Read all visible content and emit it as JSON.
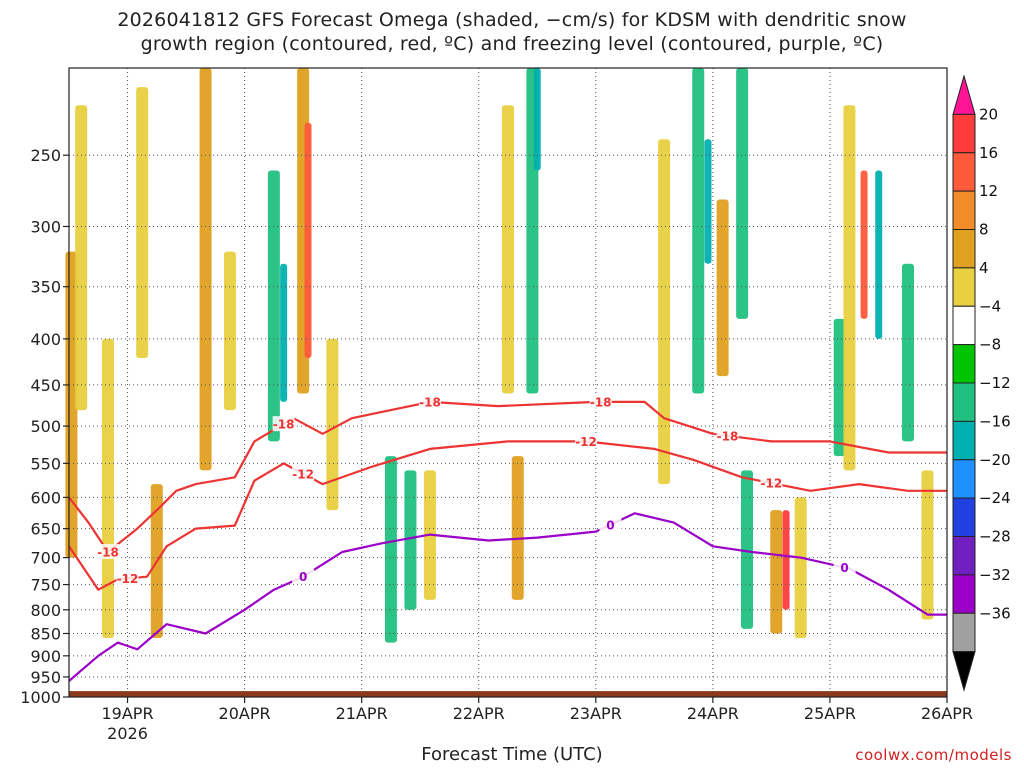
{
  "title": "2026041812 GFS Forecast Omega (shaded, −cm/s) for KDSM with dendritic snow\ngrowth region (contoured, red, ºC) and freezing level (contoured, purple, ºC)",
  "credit": "coolwx.com/models",
  "chart_data": {
    "type": "heatmap",
    "xlabel": "Forecast Time (UTC)",
    "ylabel": "",
    "x_ticks": [
      "19APR",
      "20APR",
      "21APR",
      "22APR",
      "23APR",
      "24APR",
      "25APR",
      "26APR"
    ],
    "x_sublabel": "2026",
    "x_range_hours": [
      0,
      180
    ],
    "y_ticks": [
      250,
      300,
      350,
      400,
      450,
      500,
      550,
      600,
      650,
      700,
      750,
      800,
      850,
      900,
      950,
      1000
    ],
    "y_range_hPa": [
      200,
      1000
    ],
    "grid": true,
    "colorbar": {
      "labels": [
        "20",
        "16",
        "12",
        "8",
        "4",
        "−4",
        "−8",
        "−12",
        "−16",
        "−20",
        "−24",
        "−28",
        "−32",
        "−36"
      ],
      "colors": [
        "#ff1493",
        "#ff3b3b",
        "#ff5a3a",
        "#f28c28",
        "#e0a020",
        "#e8d040",
        "#ffffff",
        "#00c400",
        "#20c080",
        "#00b0b0",
        "#1e90ff",
        "#2040e0",
        "#7020c0",
        "#9b00c8",
        "#a0a0a0",
        "#000000"
      ]
    },
    "omega_cells": [
      {
        "t": 0.5,
        "p0": 320,
        "p1": 700,
        "v": 8
      },
      {
        "t": 2.5,
        "p0": 220,
        "p1": 480,
        "v": 4
      },
      {
        "t": 8,
        "p0": 400,
        "p1": 860,
        "v": 6
      },
      {
        "t": 15,
        "p0": 210,
        "p1": 420,
        "v": 4
      },
      {
        "t": 18,
        "p0": 580,
        "p1": 860,
        "v": 8
      },
      {
        "t": 28,
        "p0": 200,
        "p1": 560,
        "v": 8
      },
      {
        "t": 33,
        "p0": 320,
        "p1": 480,
        "v": 4
      },
      {
        "t": 42,
        "p0": 260,
        "p1": 520,
        "v": -8
      },
      {
        "t": 44,
        "p0": 330,
        "p1": 470,
        "v": -12
      },
      {
        "t": 48,
        "p0": 200,
        "p1": 460,
        "v": 8
      },
      {
        "t": 49,
        "p0": 230,
        "p1": 420,
        "v": 12
      },
      {
        "t": 54,
        "p0": 400,
        "p1": 620,
        "v": 4
      },
      {
        "t": 66,
        "p0": 540,
        "p1": 870,
        "v": -8
      },
      {
        "t": 70,
        "p0": 560,
        "p1": 800,
        "v": -8
      },
      {
        "t": 74,
        "p0": 560,
        "p1": 780,
        "v": 4
      },
      {
        "t": 90,
        "p0": 220,
        "p1": 460,
        "v": 4
      },
      {
        "t": 92,
        "p0": 540,
        "p1": 780,
        "v": 8
      },
      {
        "t": 95,
        "p0": 200,
        "p1": 460,
        "v": -8
      },
      {
        "t": 96,
        "p0": 200,
        "p1": 260,
        "v": -12
      },
      {
        "t": 122,
        "p0": 240,
        "p1": 580,
        "v": 4
      },
      {
        "t": 129,
        "p0": 200,
        "p1": 460,
        "v": -8
      },
      {
        "t": 131,
        "p0": 240,
        "p1": 330,
        "v": -12
      },
      {
        "t": 134,
        "p0": 280,
        "p1": 440,
        "v": 8
      },
      {
        "t": 138,
        "p0": 200,
        "p1": 380,
        "v": -8
      },
      {
        "t": 139,
        "p0": 560,
        "p1": 840,
        "v": -8
      },
      {
        "t": 145,
        "p0": 620,
        "p1": 850,
        "v": 8
      },
      {
        "t": 147,
        "p0": 620,
        "p1": 800,
        "v": 16
      },
      {
        "t": 150,
        "p0": 600,
        "p1": 860,
        "v": 4
      },
      {
        "t": 158,
        "p0": 380,
        "p1": 540,
        "v": -8
      },
      {
        "t": 160,
        "p0": 220,
        "p1": 560,
        "v": 4
      },
      {
        "t": 163,
        "p0": 260,
        "p1": 380,
        "v": 12
      },
      {
        "t": 166,
        "p0": 260,
        "p1": 400,
        "v": -12
      },
      {
        "t": 172,
        "p0": 330,
        "p1": 520,
        "v": -8
      },
      {
        "t": 176,
        "p0": 560,
        "p1": 820,
        "v": 4
      }
    ],
    "contours": [
      {
        "name": "-18",
        "color": "#ee3333",
        "labels_t": [
          8,
          44,
          74,
          109,
          135
        ],
        "points": [
          [
            0,
            600
          ],
          [
            4,
            640
          ],
          [
            8,
            690
          ],
          [
            14,
            650
          ],
          [
            18,
            620
          ],
          [
            22,
            590
          ],
          [
            26,
            580
          ],
          [
            34,
            570
          ],
          [
            38,
            520
          ],
          [
            46,
            490
          ],
          [
            52,
            510
          ],
          [
            58,
            490
          ],
          [
            74,
            470
          ],
          [
            88,
            475
          ],
          [
            108,
            470
          ],
          [
            118,
            470
          ],
          [
            122,
            490
          ],
          [
            132,
            510
          ],
          [
            144,
            520
          ],
          [
            156,
            520
          ],
          [
            168,
            535
          ],
          [
            180,
            535
          ]
        ]
      },
      {
        "name": "-12",
        "color": "#ee3333",
        "labels_t": [
          12,
          48,
          106,
          144
        ],
        "points": [
          [
            0,
            680
          ],
          [
            6,
            760
          ],
          [
            10,
            740
          ],
          [
            16,
            735
          ],
          [
            20,
            680
          ],
          [
            26,
            650
          ],
          [
            34,
            645
          ],
          [
            38,
            575
          ],
          [
            44,
            550
          ],
          [
            52,
            580
          ],
          [
            62,
            555
          ],
          [
            74,
            530
          ],
          [
            90,
            520
          ],
          [
            106,
            520
          ],
          [
            120,
            530
          ],
          [
            128,
            545
          ],
          [
            138,
            570
          ],
          [
            152,
            590
          ],
          [
            162,
            580
          ],
          [
            172,
            590
          ],
          [
            180,
            590
          ]
        ]
      },
      {
        "name": "0",
        "color": "#9b00c8",
        "labels_t": [
          48,
          111,
          159
        ],
        "points": [
          [
            0,
            960
          ],
          [
            6,
            900
          ],
          [
            10,
            870
          ],
          [
            14,
            885
          ],
          [
            20,
            830
          ],
          [
            28,
            850
          ],
          [
            36,
            800
          ],
          [
            42,
            760
          ],
          [
            48,
            735
          ],
          [
            56,
            690
          ],
          [
            64,
            675
          ],
          [
            74,
            660
          ],
          [
            86,
            670
          ],
          [
            96,
            665
          ],
          [
            108,
            655
          ],
          [
            116,
            625
          ],
          [
            124,
            640
          ],
          [
            132,
            680
          ],
          [
            140,
            690
          ],
          [
            150,
            700
          ],
          [
            160,
            720
          ],
          [
            168,
            760
          ],
          [
            176,
            810
          ],
          [
            180,
            810
          ]
        ]
      }
    ]
  }
}
